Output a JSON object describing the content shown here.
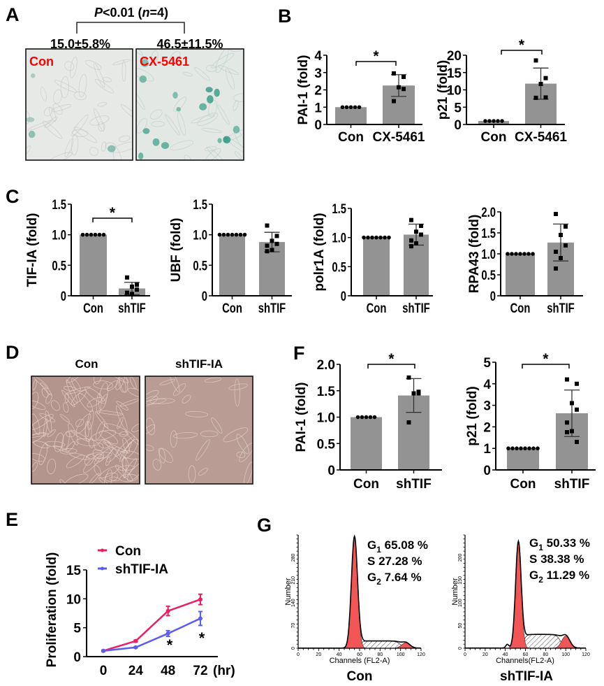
{
  "panels": {
    "a": "A",
    "b": "B",
    "c": "C",
    "d": "D",
    "e": "E",
    "f": "F",
    "g": "G"
  },
  "panel_a": {
    "pvalue": {
      "p": "P",
      "rest1": "<0.01 (",
      "n": "n",
      "rest2": "=4)"
    },
    "con_value": "15.0±5.8%",
    "cx_value": "46.5±11.5%",
    "con_label": "Con",
    "cx_label": "CX-5461",
    "label_color": "#ff0000",
    "stain_color": "#3a9e88"
  },
  "panel_d": {
    "con_title": "Con",
    "sh_title": "shTIF-IA"
  },
  "chart_data": [
    {
      "id": "b-pai1",
      "type": "bar",
      "ylabel": "PAI-1 (fold)",
      "ylim": [
        0,
        4
      ],
      "yticks": [
        "0",
        "1",
        "2",
        "3",
        "4"
      ],
      "categories": [
        "Con",
        "CX-5461"
      ],
      "values": [
        1.0,
        2.25
      ],
      "sd": [
        0,
        0.63
      ],
      "points": [
        [
          1,
          1,
          1,
          1,
          1
        ],
        [
          2.95,
          2.75,
          2.15,
          2.05,
          1.35
        ]
      ],
      "significance": "*"
    },
    {
      "id": "b-p21",
      "type": "bar",
      "ylabel": "p21 (fold)",
      "ylim": [
        0,
        20
      ],
      "yticks": [
        "0",
        "5",
        "10",
        "15",
        "20"
      ],
      "categories": [
        "Con",
        "CX-5461"
      ],
      "values": [
        1.0,
        11.8
      ],
      "sd": [
        0,
        4.5
      ],
      "points": [
        [
          1,
          1,
          1,
          1,
          1
        ],
        [
          18.5,
          13.4,
          11.7,
          7.8,
          7.7
        ]
      ],
      "significance": "*"
    },
    {
      "id": "c-tifia",
      "type": "bar",
      "ylabel": "TIF-IA (fold)",
      "ylim": [
        0,
        1.5
      ],
      "yticks": [
        "0",
        "0.5",
        "1.0",
        "1.5"
      ],
      "categories": [
        "Con",
        "shTIF"
      ],
      "values": [
        1.0,
        0.12
      ],
      "sd": [
        0,
        0.1
      ],
      "points": [
        [
          1,
          1,
          1,
          1,
          1,
          1
        ],
        [
          0.3,
          0.18,
          0.15,
          0.1,
          0.05,
          0.03
        ]
      ],
      "significance": "*"
    },
    {
      "id": "c-ubf",
      "type": "bar",
      "ylabel": "UBF (fold)",
      "ylim": [
        0,
        1.5
      ],
      "yticks": [
        "0",
        "0.5",
        "1.0",
        "1.5"
      ],
      "categories": [
        "Con",
        "shTIF"
      ],
      "values": [
        1.0,
        0.88
      ],
      "sd": [
        0,
        0.16
      ],
      "points": [
        [
          1,
          1,
          1,
          1,
          1,
          1,
          1
        ],
        [
          1.15,
          0.98,
          0.9,
          0.85,
          0.82,
          0.75,
          0.73
        ]
      ]
    },
    {
      "id": "c-polr1a",
      "type": "bar",
      "ylabel": "polr1A (fold)",
      "ylim": [
        0,
        1.5
      ],
      "yticks": [
        "0",
        "0.5",
        "1.0",
        "1.5"
      ],
      "categories": [
        "Con",
        "shTIF"
      ],
      "values": [
        1.0,
        1.05
      ],
      "sd": [
        0,
        0.18
      ],
      "points": [
        [
          1,
          1,
          1,
          1,
          1,
          1,
          1
        ],
        [
          1.3,
          1.2,
          1.1,
          1.05,
          0.95,
          0.9,
          0.85
        ]
      ]
    },
    {
      "id": "c-rpa43",
      "type": "bar",
      "ylabel": "RPA43 (fold)",
      "ylim": [
        0,
        2.0
      ],
      "yticks": [
        "0",
        "0.5",
        "1.0",
        "1.5",
        "2.0"
      ],
      "categories": [
        "Con",
        "shTIF"
      ],
      "values": [
        1.0,
        1.27
      ],
      "sd": [
        0,
        0.44
      ],
      "points": [
        [
          1,
          1,
          1,
          1,
          1,
          1,
          1
        ],
        [
          1.95,
          1.65,
          1.45,
          1.2,
          1.05,
          0.9,
          0.65
        ]
      ]
    },
    {
      "id": "f-pai1",
      "type": "bar",
      "ylabel": "PAI-1 (fold)",
      "ylim": [
        0,
        2.0
      ],
      "yticks": [
        "0",
        "0.5",
        "1.0",
        "1.5",
        "2.0"
      ],
      "categories": [
        "Con",
        "shTIF"
      ],
      "values": [
        1.0,
        1.41
      ],
      "sd": [
        0,
        0.32
      ],
      "points": [
        [
          1,
          1,
          1,
          1,
          1
        ],
        [
          1.75,
          1.45,
          1.45,
          1.48,
          0.9
        ]
      ],
      "significance": "*"
    },
    {
      "id": "f-p21",
      "type": "bar",
      "ylabel": "p21 (fold)",
      "ylim": [
        0,
        5
      ],
      "yticks": [
        "0",
        "1",
        "2",
        "3",
        "4",
        "5"
      ],
      "categories": [
        "Con",
        "shTIF"
      ],
      "values": [
        1.0,
        2.63
      ],
      "sd": [
        0,
        1.08
      ],
      "points": [
        [
          1,
          1,
          1,
          1,
          1,
          1,
          1,
          1
        ],
        [
          4.2,
          4.0,
          3.1,
          2.8,
          2.2,
          1.8,
          1.75,
          1.3
        ]
      ],
      "significance": "*"
    },
    {
      "id": "e-proliferation",
      "type": "line",
      "ylabel": "Proliferation (fold)",
      "xlabel": "(hr)",
      "x": [
        0,
        24,
        48,
        72
      ],
      "xticks": [
        "0",
        "24",
        "48",
        "72"
      ],
      "ylim": [
        0,
        15
      ],
      "yticks": [
        "0",
        "5",
        "10",
        "15"
      ],
      "legend": "top-left",
      "series": [
        {
          "name": "Con",
          "color": "#e91e63",
          "values": [
            1.0,
            2.7,
            7.9,
            9.9
          ],
          "err": [
            0.1,
            0.15,
            0.8,
            0.9
          ]
        },
        {
          "name": "shTIF-IA",
          "color": "#5b5cf2",
          "values": [
            1.0,
            1.6,
            4.0,
            6.6
          ],
          "err": [
            0.1,
            0.1,
            0.5,
            1.2
          ]
        }
      ],
      "annotations": [
        "*",
        "*"
      ]
    },
    {
      "id": "g-con",
      "type": "histogram",
      "title": "Con",
      "xlabel": "Channels (FL2-A)",
      "ylabel": "Number",
      "xlim": [
        0,
        120
      ],
      "xticks": [
        "0",
        "20",
        "40",
        "60",
        "80",
        "100",
        "120"
      ],
      "yticks": [
        "0",
        "70",
        "140",
        "210",
        "280"
      ],
      "stats": [
        {
          "phase": "G",
          "sub": "1",
          "value": " 65.08 %"
        },
        {
          "phase": "S",
          "sub": "",
          "value": " 27.28 %"
        },
        {
          "phase": "G",
          "sub": "2",
          "value": " 7.64 %"
        }
      ],
      "fill_color": "#f25555"
    },
    {
      "id": "g-shtif",
      "type": "histogram",
      "title": "shTIF-IA",
      "xlabel": "Channels(FL2-A)",
      "ylabel": "Number",
      "xlim": [
        0,
        120
      ],
      "xticks": [
        "0",
        "20",
        "40",
        "60",
        "80",
        "100",
        "120"
      ],
      "yticks": [
        "0",
        "50",
        "100",
        "150",
        "200"
      ],
      "stats": [
        {
          "phase": "G",
          "sub": "1",
          "value": " 50.33 %"
        },
        {
          "phase": "S",
          "sub": "",
          "value": " 38.38 %"
        },
        {
          "phase": "G",
          "sub": "2",
          "value": " 11.29 %"
        }
      ],
      "fill_color": "#f25555"
    }
  ]
}
